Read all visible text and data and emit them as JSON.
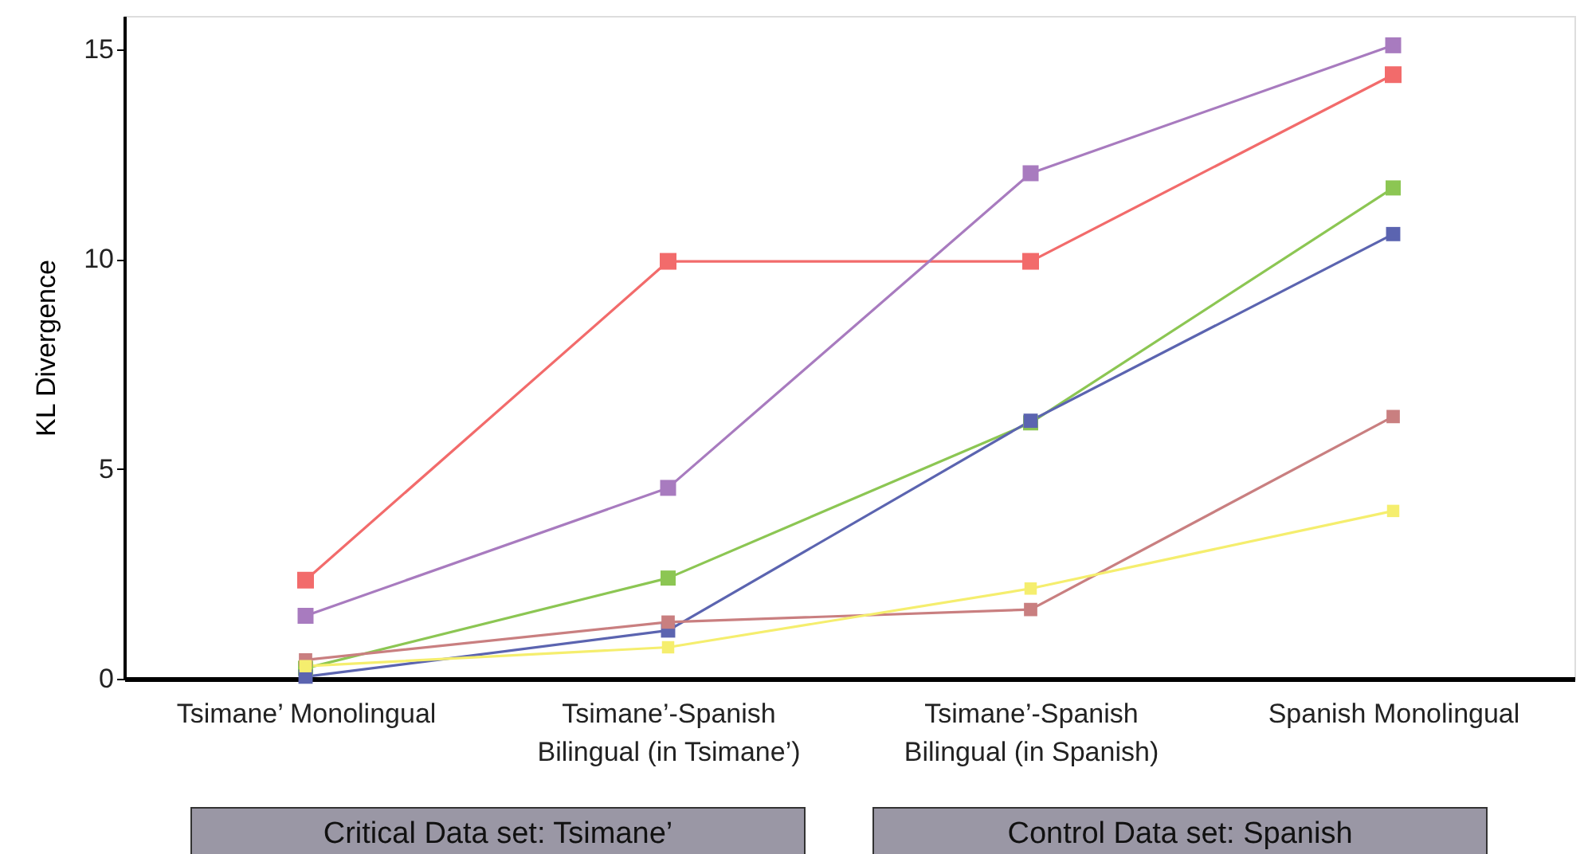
{
  "chart_data": {
    "type": "line",
    "ylabel": "KL Divergence",
    "categories": [
      "Tsimane’ Monolingual",
      "Tsimane’-Spanish\nBilingual (in Tsimane’)",
      "Tsimane’-Spanish\nBilingual (in Spanish)",
      "Spanish Monolingual"
    ],
    "series": [
      {
        "color": "#f26b6b",
        "values": [
          2.35,
          9.95,
          9.95,
          14.4
        ]
      },
      {
        "color": "#a87bbf",
        "values": [
          1.5,
          4.55,
          12.05,
          15.1
        ]
      },
      {
        "color": "#8cc653",
        "values": [
          0.25,
          2.4,
          6.1,
          11.7
        ]
      },
      {
        "color": "#5b64b0",
        "values": [
          0.05,
          1.15,
          6.15,
          10.6
        ]
      },
      {
        "color": "#c97f80",
        "values": [
          0.45,
          1.35,
          1.65,
          6.25
        ]
      },
      {
        "color": "#f5ee6e",
        "values": [
          0.3,
          0.75,
          2.15,
          4.0
        ]
      }
    ],
    "ylim": [
      0,
      15.8
    ],
    "yticks": [
      0,
      5,
      10,
      15
    ],
    "grid": false,
    "marker": "square",
    "line_style": "solid",
    "annotations": [
      "Critical Data set: Tsimane’",
      "Control Data set: Spanish"
    ]
  }
}
